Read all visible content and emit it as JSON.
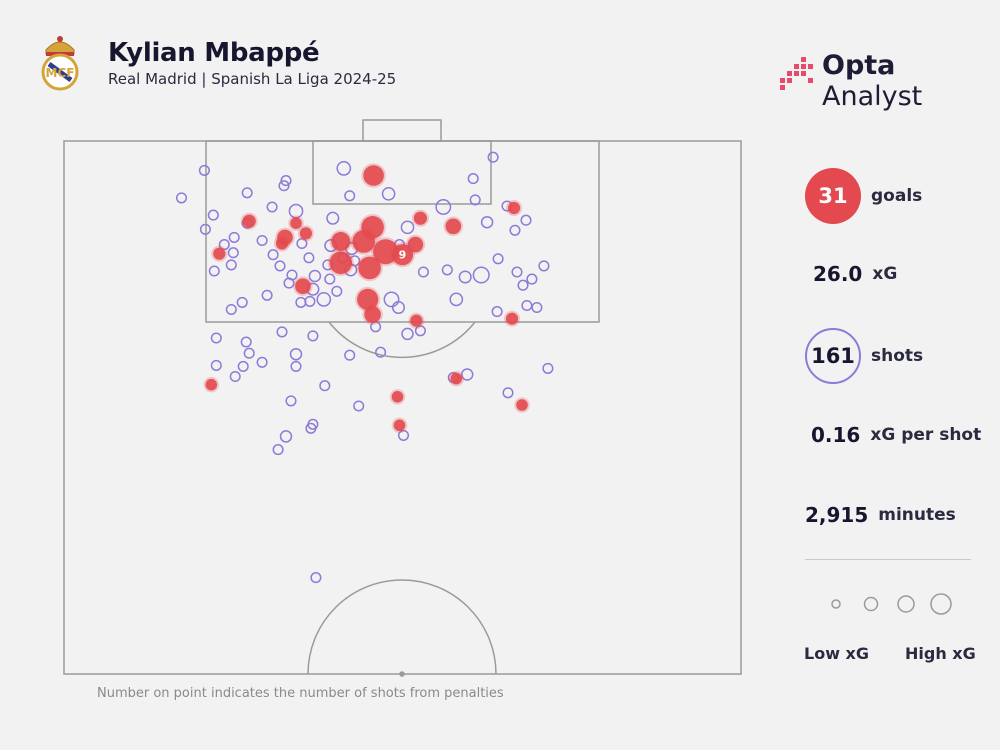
{
  "header": {
    "player": "Kylian Mbappé",
    "subtitle": "Real Madrid | Spanish La Liga 2024-25",
    "brand": "Opta Analyst",
    "brand_bold": "Opta",
    "brand_light": "Analyst",
    "crest_icon": "real-madrid-crest-icon"
  },
  "stats": {
    "goals_value": "31",
    "goals_label": "goals",
    "xg_value": "26.0",
    "xg_label": "xG",
    "shots_value": "161",
    "shots_label": "shots",
    "xg_per_shot_value": "0.16",
    "xg_per_shot_label": "xG per shot",
    "minutes_value": "2,915",
    "minutes_label": "minutes"
  },
  "legend": {
    "low_label": "Low xG",
    "high_label": "High xG"
  },
  "footnote": "Number on point indicates the number of shots from penalties",
  "colors": {
    "goal": "#e3494e",
    "shot": "#8e7ad8",
    "pitch_line": "#9a9a9a",
    "background": "#f2f2f2"
  },
  "chart_data": {
    "type": "scatter",
    "pitch_view": "attacking-half",
    "axes": {
      "x_range": [
        0,
        68
      ],
      "y_range": [
        0,
        52.5
      ],
      "x_meaning": "metres across pitch from left touchline",
      "y_meaning": "metres from goal line"
    },
    "goals": [
      {
        "x": 31.1,
        "y": 3.4,
        "xg": 0.55
      },
      {
        "x": 23.3,
        "y": 8.1,
        "xg": 0.1
      },
      {
        "x": 24.3,
        "y": 9.1,
        "xg": 0.12
      },
      {
        "x": 35.8,
        "y": 7.6,
        "xg": 0.15
      },
      {
        "x": 39.1,
        "y": 8.4,
        "xg": 0.25
      },
      {
        "x": 32.3,
        "y": 10.9,
        "xg": 0.9
      },
      {
        "x": 31.0,
        "y": 8.5,
        "xg": 0.7
      },
      {
        "x": 30.1,
        "y": 9.9,
        "xg": 0.7
      },
      {
        "x": 27.8,
        "y": 9.9,
        "xg": 0.45
      },
      {
        "x": 22.2,
        "y": 9.5,
        "xg": 0.25
      },
      {
        "x": 21.9,
        "y": 10.1,
        "xg": 0.12
      },
      {
        "x": 24.0,
        "y": 14.3,
        "xg": 0.25
      },
      {
        "x": 34.0,
        "y": 11.2,
        "xg": 0.6,
        "penalties": 9
      },
      {
        "x": 27.8,
        "y": 12.0,
        "xg": 0.7
      },
      {
        "x": 30.7,
        "y": 12.5,
        "xg": 0.7
      },
      {
        "x": 35.3,
        "y": 10.2,
        "xg": 0.25
      },
      {
        "x": 30.5,
        "y": 15.6,
        "xg": 0.6
      },
      {
        "x": 31.0,
        "y": 17.1,
        "xg": 0.3
      },
      {
        "x": 45.2,
        "y": 6.6,
        "xg": 0.12
      },
      {
        "x": 18.6,
        "y": 7.9,
        "xg": 0.15
      },
      {
        "x": 15.6,
        "y": 11.1,
        "xg": 0.12
      },
      {
        "x": 35.4,
        "y": 17.7,
        "xg": 0.12
      },
      {
        "x": 45.0,
        "y": 17.5,
        "xg": 0.12
      },
      {
        "x": 14.8,
        "y": 24.0,
        "xg": 0.1
      },
      {
        "x": 33.5,
        "y": 25.2,
        "xg": 0.1
      },
      {
        "x": 33.7,
        "y": 28.0,
        "xg": 0.1
      },
      {
        "x": 39.4,
        "y": 23.4,
        "xg": 0.1
      },
      {
        "x": 46.0,
        "y": 26.0,
        "xg": 0.1
      }
    ],
    "shots": [
      {
        "x": 14.1,
        "y": 2.9,
        "xg": 0.05
      },
      {
        "x": 22.3,
        "y": 3.9,
        "xg": 0.05
      },
      {
        "x": 28.1,
        "y": 2.7,
        "xg": 0.15
      },
      {
        "x": 28.7,
        "y": 5.4,
        "xg": 0.05
      },
      {
        "x": 32.6,
        "y": 5.2,
        "xg": 0.12
      },
      {
        "x": 41.1,
        "y": 3.7,
        "xg": 0.05
      },
      {
        "x": 43.1,
        "y": 1.6,
        "xg": 0.05
      },
      {
        "x": 22.1,
        "y": 4.4,
        "xg": 0.05
      },
      {
        "x": 18.4,
        "y": 5.1,
        "xg": 0.05
      },
      {
        "x": 11.8,
        "y": 5.6,
        "xg": 0.05
      },
      {
        "x": 20.9,
        "y": 6.5,
        "xg": 0.05
      },
      {
        "x": 23.3,
        "y": 6.9,
        "xg": 0.15
      },
      {
        "x": 38.1,
        "y": 6.5,
        "xg": 0.2
      },
      {
        "x": 44.5,
        "y": 6.4,
        "xg": 0.05
      },
      {
        "x": 41.3,
        "y": 5.8,
        "xg": 0.05
      },
      {
        "x": 46.4,
        "y": 7.8,
        "xg": 0.05
      },
      {
        "x": 15.0,
        "y": 7.3,
        "xg": 0.05
      },
      {
        "x": 18.4,
        "y": 8.1,
        "xg": 0.05
      },
      {
        "x": 27.0,
        "y": 7.6,
        "xg": 0.1
      },
      {
        "x": 34.5,
        "y": 8.5,
        "xg": 0.12
      },
      {
        "x": 42.5,
        "y": 8.0,
        "xg": 0.08
      },
      {
        "x": 14.2,
        "y": 8.7,
        "xg": 0.05
      },
      {
        "x": 17.1,
        "y": 9.5,
        "xg": 0.05
      },
      {
        "x": 16.1,
        "y": 10.2,
        "xg": 0.05
      },
      {
        "x": 45.3,
        "y": 8.8,
        "xg": 0.05
      },
      {
        "x": 19.9,
        "y": 9.8,
        "xg": 0.05
      },
      {
        "x": 23.9,
        "y": 10.1,
        "xg": 0.05
      },
      {
        "x": 26.8,
        "y": 10.3,
        "xg": 0.1
      },
      {
        "x": 28.9,
        "y": 10.6,
        "xg": 0.1
      },
      {
        "x": 33.7,
        "y": 10.2,
        "xg": 0.05
      },
      {
        "x": 21.0,
        "y": 11.2,
        "xg": 0.05
      },
      {
        "x": 24.6,
        "y": 11.5,
        "xg": 0.05
      },
      {
        "x": 26.5,
        "y": 12.2,
        "xg": 0.05
      },
      {
        "x": 28.0,
        "y": 11.5,
        "xg": 0.05
      },
      {
        "x": 28.8,
        "y": 12.7,
        "xg": 0.1
      },
      {
        "x": 29.2,
        "y": 11.8,
        "xg": 0.05
      },
      {
        "x": 43.6,
        "y": 11.6,
        "xg": 0.05
      },
      {
        "x": 16.8,
        "y": 12.2,
        "xg": 0.05
      },
      {
        "x": 15.1,
        "y": 12.8,
        "xg": 0.05
      },
      {
        "x": 17.0,
        "y": 11.0,
        "xg": 0.05
      },
      {
        "x": 21.7,
        "y": 12.3,
        "xg": 0.05
      },
      {
        "x": 22.9,
        "y": 13.2,
        "xg": 0.05
      },
      {
        "x": 25.2,
        "y": 13.3,
        "xg": 0.08
      },
      {
        "x": 26.7,
        "y": 13.6,
        "xg": 0.05
      },
      {
        "x": 36.1,
        "y": 12.9,
        "xg": 0.05
      },
      {
        "x": 38.5,
        "y": 12.7,
        "xg": 0.05
      },
      {
        "x": 40.3,
        "y": 13.4,
        "xg": 0.1
      },
      {
        "x": 41.9,
        "y": 13.2,
        "xg": 0.25
      },
      {
        "x": 45.5,
        "y": 12.9,
        "xg": 0.05
      },
      {
        "x": 48.2,
        "y": 12.3,
        "xg": 0.05
      },
      {
        "x": 47.0,
        "y": 13.6,
        "xg": 0.05
      },
      {
        "x": 46.1,
        "y": 14.2,
        "xg": 0.05
      },
      {
        "x": 22.6,
        "y": 14.0,
        "xg": 0.05
      },
      {
        "x": 25.0,
        "y": 14.6,
        "xg": 0.1
      },
      {
        "x": 27.4,
        "y": 14.8,
        "xg": 0.05
      },
      {
        "x": 26.1,
        "y": 15.6,
        "xg": 0.15
      },
      {
        "x": 24.7,
        "y": 15.8,
        "xg": 0.05
      },
      {
        "x": 23.8,
        "y": 15.9,
        "xg": 0.05
      },
      {
        "x": 20.4,
        "y": 15.2,
        "xg": 0.05
      },
      {
        "x": 17.9,
        "y": 15.9,
        "xg": 0.05
      },
      {
        "x": 16.8,
        "y": 16.6,
        "xg": 0.05
      },
      {
        "x": 32.9,
        "y": 15.6,
        "xg": 0.2
      },
      {
        "x": 33.6,
        "y": 16.4,
        "xg": 0.1
      },
      {
        "x": 39.4,
        "y": 15.6,
        "xg": 0.12
      },
      {
        "x": 43.5,
        "y": 16.8,
        "xg": 0.05
      },
      {
        "x": 46.5,
        "y": 16.2,
        "xg": 0.05
      },
      {
        "x": 47.5,
        "y": 16.4,
        "xg": 0.05
      },
      {
        "x": 31.3,
        "y": 18.3,
        "xg": 0.05
      },
      {
        "x": 34.5,
        "y": 19.0,
        "xg": 0.08
      },
      {
        "x": 35.8,
        "y": 18.7,
        "xg": 0.05
      },
      {
        "x": 21.9,
        "y": 18.8,
        "xg": 0.05
      },
      {
        "x": 25.0,
        "y": 19.2,
        "xg": 0.05
      },
      {
        "x": 18.3,
        "y": 19.8,
        "xg": 0.05
      },
      {
        "x": 15.3,
        "y": 19.4,
        "xg": 0.05
      },
      {
        "x": 18.6,
        "y": 20.9,
        "xg": 0.05
      },
      {
        "x": 23.3,
        "y": 21.0,
        "xg": 0.08
      },
      {
        "x": 23.3,
        "y": 22.2,
        "xg": 0.05
      },
      {
        "x": 19.9,
        "y": 21.8,
        "xg": 0.05
      },
      {
        "x": 18.0,
        "y": 22.2,
        "xg": 0.05
      },
      {
        "x": 17.2,
        "y": 23.2,
        "xg": 0.05
      },
      {
        "x": 31.8,
        "y": 20.8,
        "xg": 0.05
      },
      {
        "x": 28.7,
        "y": 21.1,
        "xg": 0.05
      },
      {
        "x": 15.3,
        "y": 22.1,
        "xg": 0.05
      },
      {
        "x": 26.2,
        "y": 24.1,
        "xg": 0.05
      },
      {
        "x": 22.8,
        "y": 25.6,
        "xg": 0.05
      },
      {
        "x": 39.1,
        "y": 23.3,
        "xg": 0.05
      },
      {
        "x": 40.5,
        "y": 23.0,
        "xg": 0.08
      },
      {
        "x": 48.6,
        "y": 22.4,
        "xg": 0.05
      },
      {
        "x": 44.6,
        "y": 24.8,
        "xg": 0.05
      },
      {
        "x": 25.0,
        "y": 27.9,
        "xg": 0.05
      },
      {
        "x": 24.8,
        "y": 28.3,
        "xg": 0.05
      },
      {
        "x": 22.3,
        "y": 29.1,
        "xg": 0.08
      },
      {
        "x": 21.5,
        "y": 30.4,
        "xg": 0.05
      },
      {
        "x": 34.1,
        "y": 29.0,
        "xg": 0.05
      },
      {
        "x": 29.6,
        "y": 26.1,
        "xg": 0.05
      },
      {
        "x": 25.3,
        "y": 43.0,
        "xg": 0.05
      }
    ]
  }
}
